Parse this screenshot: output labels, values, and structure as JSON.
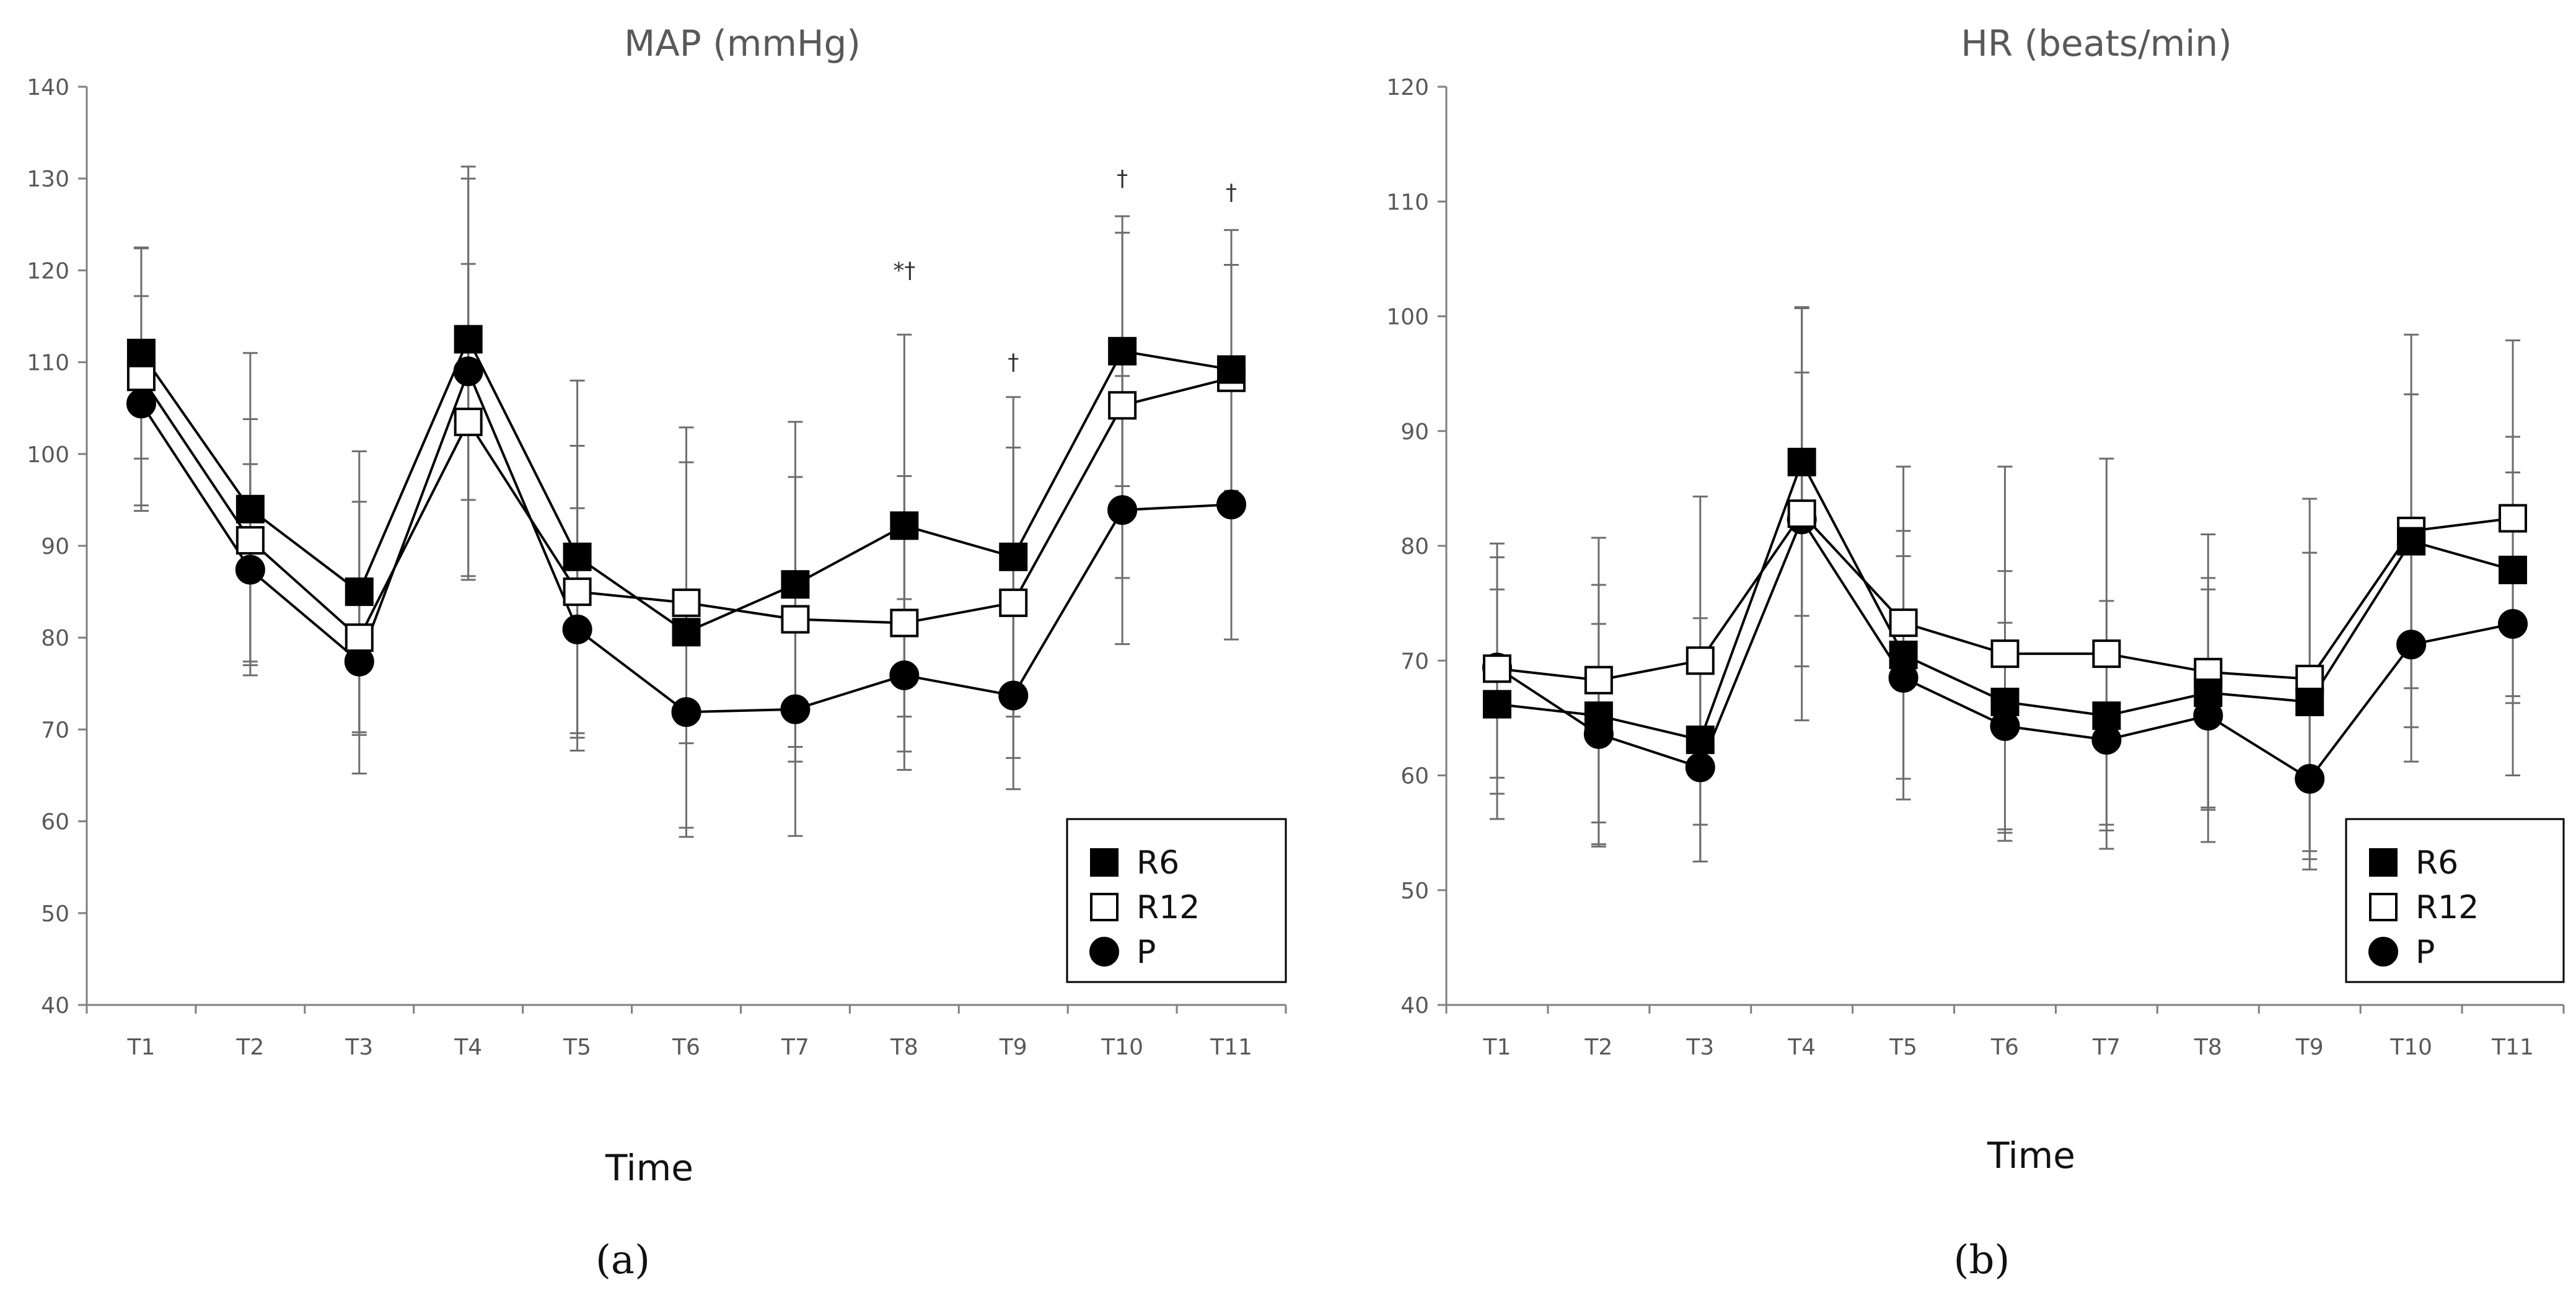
{
  "chart_data": [
    {
      "type": "line",
      "panel_label": "(a)",
      "title": "MAP (mmHg)",
      "xlabel": "Time",
      "ylabel": "",
      "ylim": [
        40,
        140
      ],
      "yticks": [
        40,
        50,
        60,
        70,
        80,
        90,
        100,
        110,
        120,
        130,
        140
      ],
      "categories": [
        "T1",
        "T2",
        "T3",
        "T4",
        "T5",
        "T6",
        "T7",
        "T8",
        "T9",
        "T10",
        "T11"
      ],
      "grid": false,
      "legend_position": "bottom-right",
      "series": [
        {
          "name": "R6",
          "marker": "filled-square",
          "values": [
            111,
            94,
            85,
            112.5,
            88.8,
            80.6,
            85.8,
            92.2,
            88.8,
            111.2,
            109.2
          ],
          "error": [
            11.5,
            17,
            15.3,
            17.5,
            19.2,
            22.3,
            17.7,
            20.8,
            17.4,
            14.7,
            15.2
          ]
        },
        {
          "name": "R12",
          "marker": "open-square",
          "values": [
            108.4,
            90.6,
            80,
            103.5,
            85,
            83.8,
            82,
            81.6,
            83.8,
            105.3,
            108.3
          ],
          "error": [
            14,
            13.2,
            14.8,
            17.2,
            15.9,
            15.3,
            15.5,
            16,
            16.9,
            18.8,
            12.3
          ]
        },
        {
          "name": "P",
          "marker": "filled-circle",
          "values": [
            105.5,
            87.4,
            77.4,
            109,
            80.9,
            71.9,
            72.2,
            75.9,
            73.7,
            93.9,
            94.5
          ],
          "error": [
            11.7,
            11.5,
            8,
            22.3,
            13.2,
            12.6,
            13.8,
            8.3,
            10.2,
            14.6,
            14.7
          ]
        }
      ],
      "annotations": [
        {
          "category": "T8",
          "text": "*†",
          "y": 120
        },
        {
          "category": "T9",
          "text": "†",
          "y": 110
        },
        {
          "category": "T10",
          "text": "†",
          "y": 130
        },
        {
          "category": "T11",
          "text": "†",
          "y": 128.5
        }
      ]
    },
    {
      "type": "line",
      "panel_label": "(b)",
      "title": "HR (beats/min)",
      "xlabel": "Time",
      "ylabel": "",
      "ylim": [
        40,
        120
      ],
      "yticks": [
        40,
        50,
        60,
        70,
        80,
        90,
        100,
        110,
        120
      ],
      "categories": [
        "T1",
        "T2",
        "T3",
        "T4",
        "T5",
        "T6",
        "T7",
        "T8",
        "T9",
        "T10",
        "T11"
      ],
      "grid": false,
      "legend_position": "bottom-right",
      "series": [
        {
          "name": "R6",
          "marker": "filled-square",
          "values": [
            66.2,
            65.2,
            63.1,
            87.3,
            70.5,
            66.4,
            65.2,
            67.2,
            66.4,
            80.4,
            77.9
          ],
          "error": [
            10,
            11.4,
            10.6,
            13.4,
            10.8,
            11.4,
            10,
            10,
            13,
            12.8,
            11.6
          ]
        },
        {
          "name": "R12",
          "marker": "open-square",
          "values": [
            69.3,
            68.3,
            70,
            82.8,
            73.3,
            70.6,
            70.6,
            69,
            68.4,
            81.3,
            82.4
          ],
          "error": [
            10.9,
            12.4,
            14.3,
            18,
            13.6,
            16.3,
            17,
            12,
            15.7,
            17.1,
            15.5
          ]
        },
        {
          "name": "P",
          "marker": "filled-circle",
          "values": [
            69.4,
            63.6,
            60.7,
            82.3,
            68.5,
            64.3,
            63.1,
            65.2,
            59.7,
            71.4,
            73.2
          ],
          "error": [
            9.6,
            9.6,
            8.2,
            12.8,
            10.6,
            9,
            7.4,
            11,
            7.9,
            10.2,
            13.2
          ]
        }
      ],
      "annotations": []
    }
  ]
}
